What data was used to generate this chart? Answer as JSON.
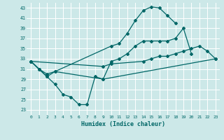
{
  "background_color": "#cce8e8",
  "grid_color": "#ffffff",
  "line_color": "#006666",
  "xlabel": "Humidex (Indice chaleur)",
  "xlim": [
    -0.5,
    23.5
  ],
  "ylim": [
    22,
    44
  ],
  "yticks": [
    23,
    25,
    27,
    29,
    31,
    33,
    35,
    37,
    39,
    41,
    43
  ],
  "xticks": [
    0,
    1,
    2,
    3,
    4,
    5,
    6,
    7,
    8,
    9,
    10,
    11,
    12,
    13,
    14,
    15,
    16,
    17,
    18,
    19,
    20,
    21,
    22,
    23
  ],
  "series": [
    {
      "x": [
        0,
        1,
        2,
        3,
        10,
        11,
        12,
        13,
        14,
        15,
        16,
        17,
        18
      ],
      "y": [
        32.5,
        31.0,
        29.5,
        30.5,
        35.5,
        36.0,
        38.0,
        40.5,
        42.5,
        43.2,
        43.0,
        41.5,
        40.0
      ]
    },
    {
      "x": [
        0,
        1,
        2,
        3,
        9,
        10,
        11,
        12,
        13,
        14,
        15,
        16,
        17,
        18,
        19,
        20
      ],
      "y": [
        32.5,
        31.0,
        30.0,
        30.5,
        29.0,
        32.5,
        33.0,
        34.0,
        35.5,
        36.5,
        36.5,
        36.5,
        36.5,
        37.0,
        39.0,
        34.0
      ]
    },
    {
      "x": [
        0,
        1,
        2,
        3,
        4,
        5,
        6,
        7,
        8,
        9,
        23
      ],
      "y": [
        32.5,
        31.0,
        29.5,
        28.0,
        26.0,
        25.5,
        24.0,
        24.0,
        29.5,
        29.0,
        33.0
      ]
    },
    {
      "x": [
        0,
        9,
        10,
        14,
        15,
        16,
        17,
        18,
        19,
        20,
        21,
        22,
        23
      ],
      "y": [
        32.5,
        31.5,
        32.0,
        32.5,
        33.0,
        33.5,
        33.5,
        34.0,
        34.5,
        35.0,
        35.5,
        34.5,
        33.0
      ]
    }
  ]
}
